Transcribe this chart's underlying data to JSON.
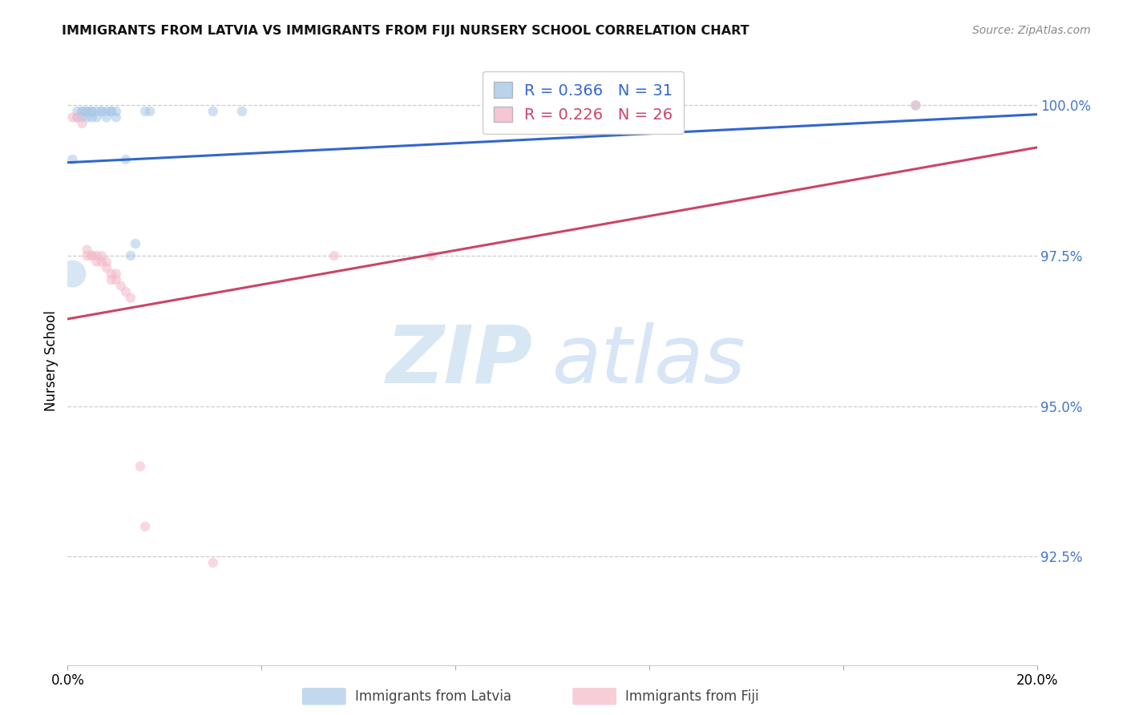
{
  "title": "IMMIGRANTS FROM LATVIA VS IMMIGRANTS FROM FIJI NURSERY SCHOOL CORRELATION CHART",
  "source": "Source: ZipAtlas.com",
  "ylabel": "Nursery School",
  "ytick_labels": [
    "100.0%",
    "97.5%",
    "95.0%",
    "92.5%"
  ],
  "ytick_vals": [
    1.0,
    0.975,
    0.95,
    0.925
  ],
  "xlim": [
    0.0,
    0.2
  ],
  "ylim": [
    0.907,
    1.008
  ],
  "latvia_color": "#a8c8e8",
  "fiji_color": "#f4b8c8",
  "latvia_line_color": "#3366cc",
  "fiji_line_color": "#cc4466",
  "watermark_zip": "ZIP",
  "watermark_atlas": "atlas",
  "legend_r_latvia": "R = 0.366",
  "legend_n_latvia": "N = 31",
  "legend_r_fiji": "R = 0.226",
  "legend_n_fiji": "N = 26",
  "latvia_x": [
    0.001,
    0.002,
    0.002,
    0.003,
    0.003,
    0.003,
    0.004,
    0.004,
    0.004,
    0.005,
    0.005,
    0.005,
    0.006,
    0.006,
    0.007,
    0.007,
    0.008,
    0.008,
    0.009,
    0.009,
    0.01,
    0.01,
    0.012,
    0.013,
    0.014,
    0.016,
    0.017,
    0.03,
    0.036,
    0.105,
    0.175
  ],
  "latvia_y": [
    0.991,
    0.999,
    0.998,
    0.999,
    0.998,
    0.999,
    0.999,
    0.998,
    0.999,
    0.999,
    0.998,
    0.999,
    0.999,
    0.998,
    0.999,
    0.999,
    0.999,
    0.998,
    0.999,
    0.999,
    0.999,
    0.998,
    0.991,
    0.975,
    0.977,
    0.999,
    0.999,
    0.999,
    0.999,
    0.999,
    1.0
  ],
  "latvia_size": [
    80,
    80,
    80,
    80,
    80,
    80,
    80,
    80,
    80,
    80,
    80,
    80,
    80,
    80,
    80,
    80,
    80,
    80,
    80,
    80,
    80,
    80,
    80,
    80,
    80,
    80,
    80,
    80,
    80,
    80,
    80
  ],
  "latvia_large_idx": 0,
  "fiji_x": [
    0.001,
    0.002,
    0.003,
    0.004,
    0.004,
    0.005,
    0.005,
    0.006,
    0.006,
    0.007,
    0.007,
    0.008,
    0.008,
    0.009,
    0.009,
    0.01,
    0.01,
    0.011,
    0.012,
    0.013,
    0.015,
    0.016,
    0.03,
    0.055,
    0.075,
    0.175
  ],
  "fiji_y": [
    0.998,
    0.998,
    0.997,
    0.975,
    0.976,
    0.975,
    0.975,
    0.975,
    0.974,
    0.975,
    0.974,
    0.974,
    0.973,
    0.972,
    0.971,
    0.972,
    0.971,
    0.97,
    0.969,
    0.968,
    0.94,
    0.93,
    0.924,
    0.975,
    0.975,
    1.0
  ],
  "fiji_size": [
    80,
    80,
    80,
    80,
    80,
    80,
    80,
    80,
    80,
    80,
    80,
    80,
    80,
    80,
    80,
    80,
    80,
    80,
    80,
    80,
    80,
    80,
    80,
    80,
    80,
    80
  ],
  "fiji_large_idx": 0
}
